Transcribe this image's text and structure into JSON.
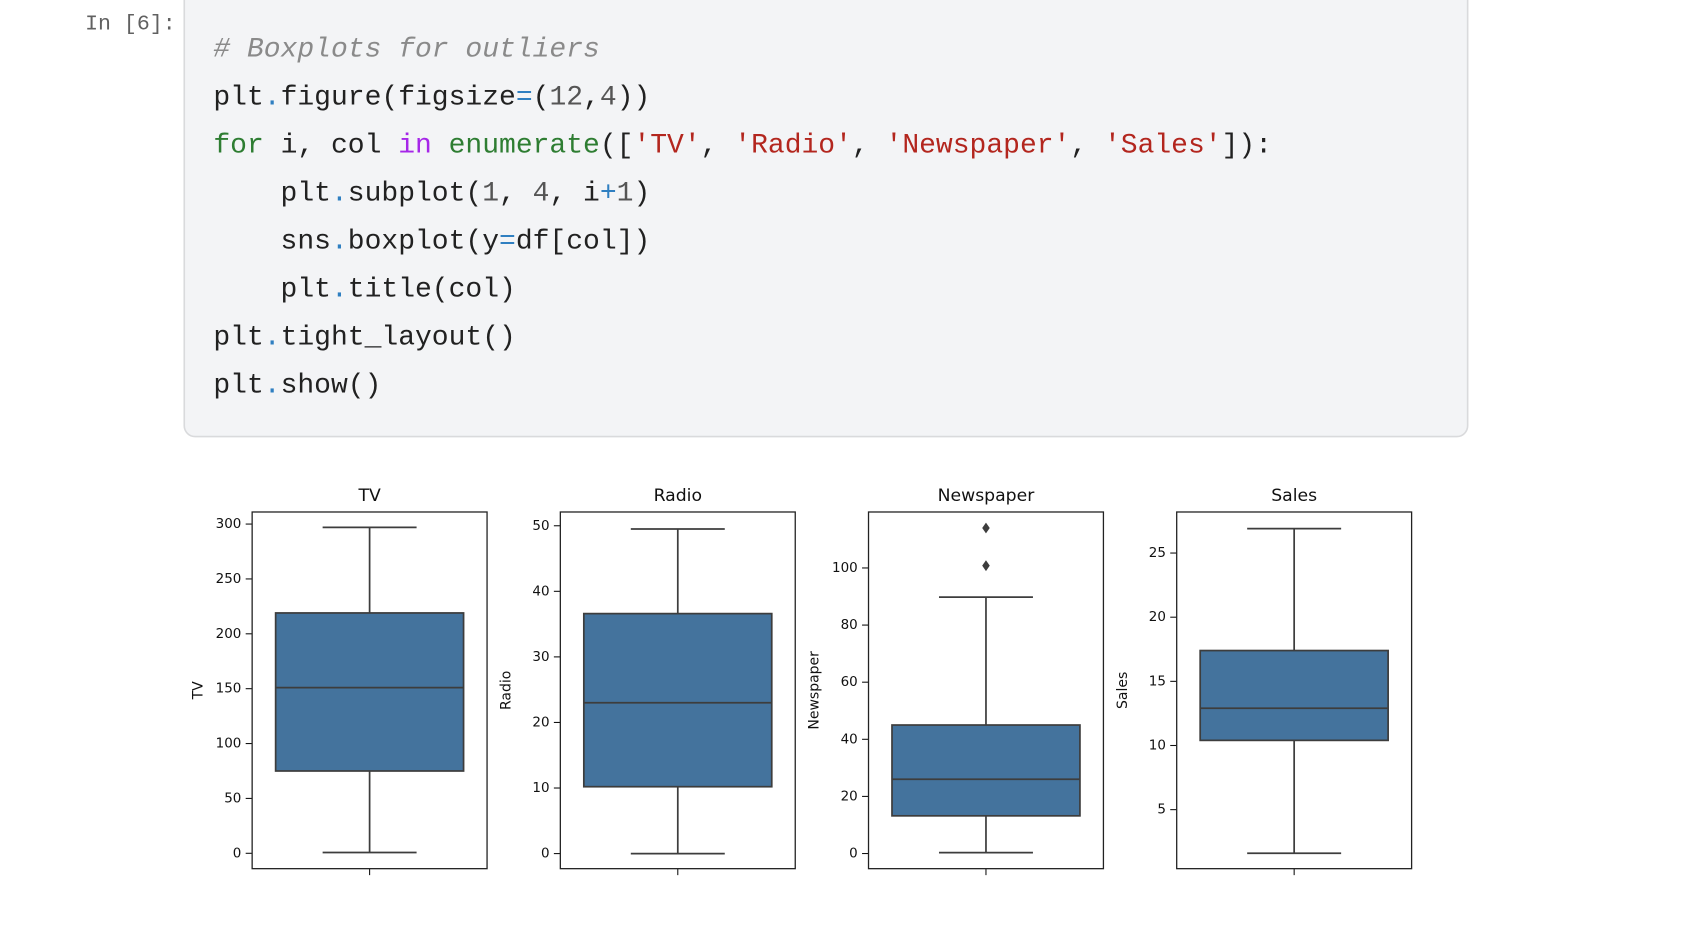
{
  "prompt": "In [6]:",
  "code": [
    [
      {
        "text": "# Boxplots for outliers",
        "color": "#8a8a8a",
        "font_style": "italic"
      }
    ],
    [
      {
        "text": "plt",
        "color": "#212121"
      },
      {
        "text": ".",
        "color": "#2f7fc1"
      },
      {
        "text": "figure(figsize",
        "color": "#212121"
      },
      {
        "text": "=",
        "color": "#2f7fc1"
      },
      {
        "text": "(",
        "color": "#212121"
      },
      {
        "text": "12",
        "color": "#555555"
      },
      {
        "text": ",",
        "color": "#212121"
      },
      {
        "text": "4",
        "color": "#555555"
      },
      {
        "text": "))",
        "color": "#212121"
      }
    ],
    [
      {
        "text": "for",
        "color": "#2e7d32"
      },
      {
        "text": " i, col ",
        "color": "#212121"
      },
      {
        "text": "in",
        "color": "#a626e8"
      },
      {
        "text": " ",
        "color": "#212121"
      },
      {
        "text": "enumerate",
        "color": "#2e7d32"
      },
      {
        "text": "([",
        "color": "#212121"
      },
      {
        "text": "'TV'",
        "color": "#b3261e"
      },
      {
        "text": ", ",
        "color": "#212121"
      },
      {
        "text": "'Radio'",
        "color": "#b3261e"
      },
      {
        "text": ", ",
        "color": "#212121"
      },
      {
        "text": "'Newspaper'",
        "color": "#b3261e"
      },
      {
        "text": ", ",
        "color": "#212121"
      },
      {
        "text": "'Sales'",
        "color": "#b3261e"
      },
      {
        "text": "]):",
        "color": "#212121"
      }
    ],
    [
      {
        "text": "    plt",
        "color": "#212121"
      },
      {
        "text": ".",
        "color": "#2f7fc1"
      },
      {
        "text": "subplot(",
        "color": "#212121"
      },
      {
        "text": "1",
        "color": "#555555"
      },
      {
        "text": ", ",
        "color": "#212121"
      },
      {
        "text": "4",
        "color": "#555555"
      },
      {
        "text": ", i",
        "color": "#212121"
      },
      {
        "text": "+",
        "color": "#2f7fc1"
      },
      {
        "text": "1",
        "color": "#555555"
      },
      {
        "text": ")",
        "color": "#212121"
      }
    ],
    [
      {
        "text": "    sns",
        "color": "#212121"
      },
      {
        "text": ".",
        "color": "#2f7fc1"
      },
      {
        "text": "boxplot(y",
        "color": "#212121"
      },
      {
        "text": "=",
        "color": "#2f7fc1"
      },
      {
        "text": "df[col])",
        "color": "#212121"
      }
    ],
    [
      {
        "text": "    plt",
        "color": "#212121"
      },
      {
        "text": ".",
        "color": "#2f7fc1"
      },
      {
        "text": "title(col)",
        "color": "#212121"
      }
    ],
    [
      {
        "text": "plt",
        "color": "#212121"
      },
      {
        "text": ".",
        "color": "#2f7fc1"
      },
      {
        "text": "tight_layout()",
        "color": "#212121"
      }
    ],
    [
      {
        "text": "plt",
        "color": "#212121"
      },
      {
        "text": ".",
        "color": "#2f7fc1"
      },
      {
        "text": "show()",
        "color": "#212121"
      }
    ]
  ],
  "chart_data": [
    {
      "type": "box",
      "title": "TV",
      "ylabel": "TV",
      "color": "#44739d",
      "ylim": [
        -14,
        311
      ],
      "yticks": [
        0,
        50,
        100,
        150,
        200,
        250,
        300
      ],
      "whislo": 0.7,
      "q1": 75,
      "median": 151,
      "q3": 219,
      "whishi": 297,
      "fliers": []
    },
    {
      "type": "box",
      "title": "Radio",
      "ylabel": "Radio",
      "color": "#44739d",
      "ylim": [
        -2.3,
        52.1
      ],
      "yticks": [
        0,
        10,
        20,
        30,
        40,
        50
      ],
      "whislo": 0,
      "q1": 10.2,
      "median": 23,
      "q3": 36.6,
      "whishi": 49.5,
      "fliers": []
    },
    {
      "type": "box",
      "title": "Newspaper",
      "ylabel": "Newspaper",
      "color": "#44739d",
      "ylim": [
        -5.3,
        119.6
      ],
      "yticks": [
        0,
        20,
        40,
        60,
        80,
        100
      ],
      "whislo": 0.3,
      "q1": 13.2,
      "median": 26,
      "q3": 45,
      "whishi": 89.8,
      "fliers": [
        100.8,
        114
      ]
    },
    {
      "type": "box",
      "title": "Sales",
      "ylabel": "Sales",
      "color": "#44739d",
      "ylim": [
        0.4,
        28.2
      ],
      "yticks": [
        5,
        10,
        15,
        20,
        25
      ],
      "whislo": 1.6,
      "q1": 10.4,
      "median": 12.9,
      "q3": 17.4,
      "whishi": 26.9,
      "fliers": []
    }
  ]
}
